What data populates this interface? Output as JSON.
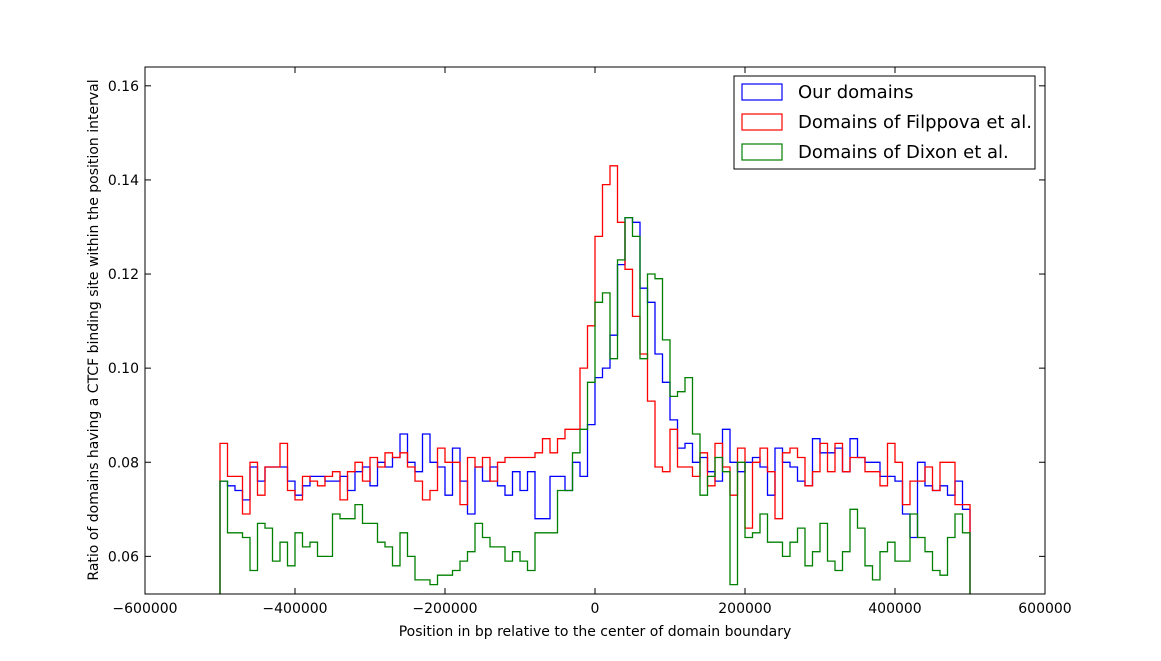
{
  "chart_data": {
    "type": "line",
    "step": true,
    "title": "",
    "xlabel": "Position in bp relative to the center of domain boundary",
    "ylabel": "Ratio of domains having a CTCF binding site within the position interval",
    "xlim": [
      -600000,
      600000
    ],
    "ylim": [
      0.052,
      0.164
    ],
    "xticks": [
      -600000,
      -400000,
      -200000,
      0,
      200000,
      400000,
      600000
    ],
    "xtick_labels": [
      "−600000",
      "−400000",
      "−200000",
      "0",
      "200000",
      "400000",
      "600000"
    ],
    "yticks": [
      0.06,
      0.08,
      0.1,
      0.12,
      0.14,
      0.16
    ],
    "ytick_labels": [
      "0.06",
      "0.08",
      "0.10",
      "0.12",
      "0.14",
      "0.16"
    ],
    "legend_position": "top-right",
    "grid": false,
    "bin_width": 10000,
    "bin_start": -500000,
    "series": [
      {
        "name": "Our domains",
        "color": "#0000ff",
        "values": [
          0.076,
          0.075,
          0.074,
          0.072,
          0.079,
          0.076,
          0.079,
          0.079,
          0.079,
          0.076,
          0.073,
          0.075,
          0.077,
          0.077,
          0.076,
          0.076,
          0.077,
          0.074,
          0.078,
          0.079,
          0.075,
          0.08,
          0.079,
          0.081,
          0.086,
          0.08,
          0.078,
          0.086,
          0.08,
          0.079,
          0.073,
          0.083,
          0.076,
          0.069,
          0.079,
          0.076,
          0.079,
          0.075,
          0.073,
          0.078,
          0.074,
          0.078,
          0.068,
          0.068,
          0.077,
          0.077,
          0.074,
          0.08,
          0.077,
          0.088,
          0.098,
          0.1,
          0.107,
          0.122,
          0.132,
          0.131,
          0.117,
          0.114,
          0.103,
          0.097,
          0.089,
          0.083,
          0.084,
          0.08,
          0.081,
          0.078,
          0.076,
          0.087,
          0.08,
          0.078,
          0.08,
          0.081,
          0.079,
          0.073,
          0.083,
          0.08,
          0.079,
          0.076,
          0.075,
          0.085,
          0.082,
          0.082,
          0.083,
          0.078,
          0.085,
          0.081,
          0.08,
          0.08,
          0.077,
          0.077,
          0.076,
          0.069,
          0.064,
          0.08,
          0.075,
          0.074,
          0.075,
          0.073,
          0.076,
          0.07
        ]
      },
      {
        "name": "Domains of Filppova et al.",
        "color": "#ff0000",
        "values": [
          0.084,
          0.077,
          0.077,
          0.069,
          0.08,
          0.073,
          0.079,
          0.079,
          0.084,
          0.074,
          0.072,
          0.077,
          0.076,
          0.075,
          0.077,
          0.078,
          0.072,
          0.078,
          0.08,
          0.076,
          0.081,
          0.079,
          0.082,
          0.081,
          0.082,
          0.079,
          0.076,
          0.072,
          0.074,
          0.083,
          0.08,
          0.08,
          0.071,
          0.081,
          0.079,
          0.081,
          0.076,
          0.08,
          0.081,
          0.081,
          0.081,
          0.081,
          0.082,
          0.085,
          0.082,
          0.085,
          0.087,
          0.087,
          0.1,
          0.109,
          0.128,
          0.139,
          0.143,
          0.131,
          0.121,
          0.111,
          0.103,
          0.093,
          0.079,
          0.078,
          0.087,
          0.079,
          0.079,
          0.077,
          0.082,
          0.075,
          0.084,
          0.079,
          0.073,
          0.083,
          0.066,
          0.08,
          0.083,
          0.078,
          0.068,
          0.082,
          0.083,
          0.081,
          0.075,
          0.078,
          0.084,
          0.078,
          0.084,
          0.078,
          0.081,
          0.081,
          0.078,
          0.078,
          0.075,
          0.084,
          0.08,
          0.071,
          0.076,
          0.076,
          0.079,
          0.074,
          0.08,
          0.08,
          0.071,
          0.071
        ]
      },
      {
        "name": "Domains of Dixon et al.",
        "color": "#008000",
        "values": [
          0.076,
          0.065,
          0.065,
          0.064,
          0.057,
          0.067,
          0.066,
          0.059,
          0.063,
          0.058,
          0.065,
          0.062,
          0.063,
          0.06,
          0.06,
          0.069,
          0.068,
          0.068,
          0.071,
          0.067,
          0.067,
          0.063,
          0.062,
          0.058,
          0.065,
          0.06,
          0.055,
          0.055,
          0.054,
          0.056,
          0.056,
          0.057,
          0.059,
          0.061,
          0.067,
          0.064,
          0.062,
          0.062,
          0.059,
          0.061,
          0.059,
          0.057,
          0.065,
          0.065,
          0.065,
          0.074,
          0.074,
          0.082,
          0.087,
          0.097,
          0.114,
          0.116,
          0.102,
          0.123,
          0.132,
          0.128,
          0.102,
          0.12,
          0.119,
          0.106,
          0.094,
          0.095,
          0.098,
          0.086,
          0.073,
          0.077,
          0.081,
          0.078,
          0.054,
          0.08,
          0.064,
          0.065,
          0.069,
          0.063,
          0.063,
          0.06,
          0.063,
          0.066,
          0.058,
          0.061,
          0.067,
          0.059,
          0.057,
          0.061,
          0.07,
          0.066,
          0.058,
          0.055,
          0.061,
          0.063,
          0.059,
          0.059,
          0.069,
          0.064,
          0.061,
          0.057,
          0.056,
          0.064,
          0.069,
          0.065
        ]
      }
    ]
  }
}
